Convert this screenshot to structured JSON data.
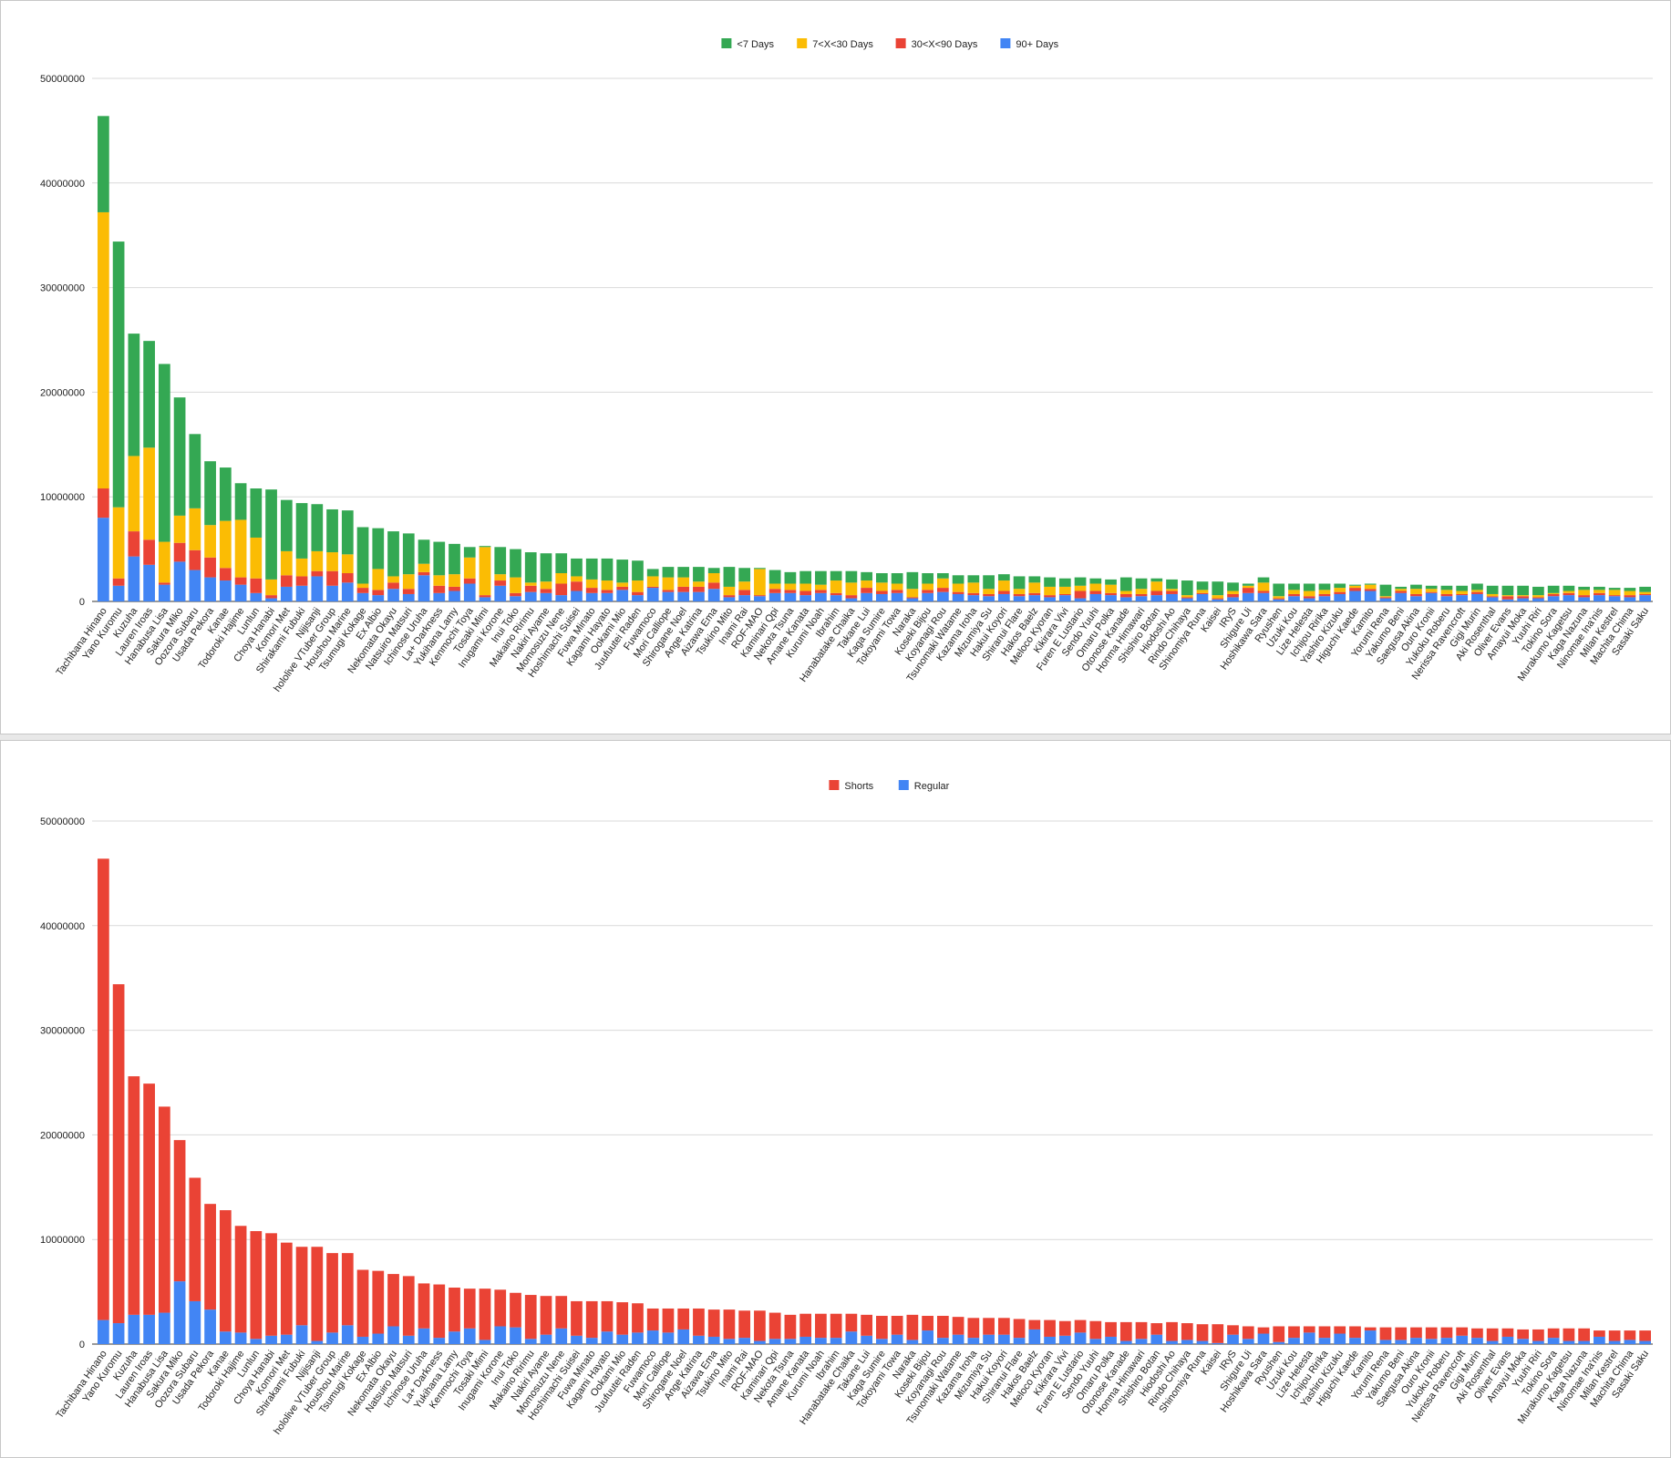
{
  "names": [
    "Tachibana Hinano",
    "Yano Kuromu",
    "Kuzuha",
    "Lauren Iroas",
    "Hanabusa Lisa",
    "Sakura Miko",
    "Oozora Subaru",
    "Usada Pekora",
    "Kanae",
    "Todoroki Hajime",
    "Lunlun",
    "Choya Hanabi",
    "Komori Met",
    "Shirakami Fubuki",
    "Nijisanji",
    "hololive VTuber Group",
    "Houshou Marine",
    "Tsumugi Kokage",
    "Ex Albio",
    "Nekomata Okayu",
    "Natsuiro Matsuri",
    "Ichinose Uruha",
    "La+ Darkness",
    "Yukihana Lamy",
    "Kenmochi Toya",
    "Tosaki Mimi",
    "Inugami Korone",
    "Inui Toko",
    "Makaino Ririmu",
    "Nakiri Ayame",
    "Momosuzu Nene",
    "Hoshimachi Suisei",
    "Fuwa Minato",
    "Kagami Hayato",
    "Ookami Mio",
    "Juufuutei Raden",
    "Fuwamoco",
    "Mori Calliope",
    "Shirogane Noel",
    "Ange Katrina",
    "Aizawa Ema",
    "Tsukino Mito",
    "Inami Rai",
    "ROF-MAO",
    "Kaminari Qpi",
    "Nekota Tsuna",
    "Amane Kanata",
    "Kurumi Noah",
    "Ibrahim",
    "Hanabatake Chaika",
    "Takane Lui",
    "Kaga Sumire",
    "Tokoyami Towa",
    "Naraka",
    "Koseki Bijou",
    "Koyanagi Rou",
    "Tsunomaki Watame",
    "Kazama Iroha",
    "Mizumiya Su",
    "Hakui Koyori",
    "Shiranui Flare",
    "Hakos Baelz",
    "Meloco Kyoran",
    "Kikirara Vivi",
    "Furen E Lustario",
    "Sendo Yuuhi",
    "Omaru Polka",
    "Otonose Kanade",
    "Honma Himawari",
    "Shishiro Botan",
    "Hiodoshi Ao",
    "Rindo Chihaya",
    "Shinomiya Runa",
    "Kaisei",
    "IRyS",
    "Shigure Ui",
    "Hoshikawa Sara",
    "Ryushen",
    "Uzuki Kou",
    "Lize Helesta",
    "Ichijou Ririka",
    "Yashiro Kizuku",
    "Higuchi Kaede",
    "Kamito",
    "Yorumi Rena",
    "Yakumo Beni",
    "Saegusa Akina",
    "Ouro Kronii",
    "Yukoku Roberu",
    "Nerissa Ravencroft",
    "Gigi Murin",
    "Aki Rosenthal",
    "Oliver Evans",
    "Amayui Moka",
    "Yuuhi Riri",
    "Tokino Sora",
    "Murakumo Kagetsu",
    "Kaga Nazuna",
    "Ninomae Ina'nis",
    "Milan Kestrel",
    "Machita Chima",
    "Sasaki Saku"
  ],
  "chart_data": [
    {
      "type": "bar",
      "stacked": true,
      "title": "",
      "xlabel": "",
      "ylabel": "",
      "ylim": [
        0,
        50000000
      ],
      "yticks": [
        "0",
        "10000000",
        "20000000",
        "30000000",
        "40000000",
        "50000000"
      ],
      "grid": true,
      "legend_position": "top",
      "series": [
        {
          "name": "90+ Days",
          "color": "#4285f4",
          "values": [
            8000000,
            1500000,
            4300000,
            3500000,
            1600000,
            3800000,
            3000000,
            2300000,
            2000000,
            1600000,
            800000,
            300000,
            1400000,
            1500000,
            2400000,
            1500000,
            1800000,
            800000,
            600000,
            1200000,
            700000,
            2500000,
            800000,
            1000000,
            1700000,
            400000,
            1500000,
            500000,
            900000,
            800000,
            600000,
            1000000,
            800000,
            800000,
            1100000,
            600000,
            1300000,
            900000,
            900000,
            900000,
            1200000,
            400000,
            600000,
            500000,
            800000,
            800000,
            600000,
            800000,
            600000,
            300000,
            800000,
            700000,
            800000,
            300000,
            800000,
            900000,
            700000,
            600000,
            500000,
            700000,
            500000,
            600000,
            400000,
            600000,
            300000,
            700000,
            600000,
            400000,
            500000,
            600000,
            700000,
            300000,
            700000,
            200000,
            400000,
            800000,
            800000,
            200000,
            500000,
            300000,
            500000,
            700000,
            1000000,
            1000000,
            300000,
            800000,
            500000,
            800000,
            500000,
            600000,
            700000,
            400000,
            200000,
            300000,
            300000,
            500000,
            600000,
            400000,
            600000,
            500000,
            400000,
            600000
          ]
        },
        {
          "name": "30<X<90 Days",
          "color": "#ea4335",
          "values": [
            2800000,
            700000,
            2400000,
            2400000,
            200000,
            1800000,
            1900000,
            1900000,
            1200000,
            700000,
            1400000,
            300000,
            1100000,
            900000,
            500000,
            1400000,
            900000,
            500000,
            500000,
            600000,
            500000,
            300000,
            700000,
            400000,
            500000,
            200000,
            500000,
            300000,
            600000,
            400000,
            1100000,
            900000,
            500000,
            300000,
            300000,
            300000,
            100000,
            200000,
            500000,
            500000,
            600000,
            200000,
            500000,
            100000,
            400000,
            300000,
            400000,
            300000,
            200000,
            300000,
            500000,
            300000,
            300000,
            100000,
            300000,
            400000,
            200000,
            200000,
            200000,
            300000,
            200000,
            200000,
            200000,
            100000,
            700000,
            300000,
            200000,
            300000,
            200000,
            400000,
            300000,
            100000,
            100000,
            100000,
            300000,
            500000,
            200000,
            100000,
            200000,
            200000,
            200000,
            200000,
            300000,
            200000,
            100000,
            200000,
            200000,
            100000,
            200000,
            100000,
            200000,
            100000,
            300000,
            200000,
            100000,
            200000,
            200000,
            200000,
            200000,
            100000,
            200000,
            100000
          ]
        },
        {
          "name": "7<X<30 Days",
          "color": "#fbbc04",
          "values": [
            26400000,
            6800000,
            7200000,
            8800000,
            3900000,
            2600000,
            4000000,
            3100000,
            4500000,
            5500000,
            3900000,
            1500000,
            2300000,
            1700000,
            1900000,
            1800000,
            1800000,
            400000,
            2000000,
            600000,
            1400000,
            800000,
            1000000,
            1200000,
            2000000,
            4600000,
            600000,
            1500000,
            300000,
            700000,
            1000000,
            500000,
            800000,
            900000,
            400000,
            1100000,
            1000000,
            1200000,
            900000,
            500000,
            900000,
            800000,
            800000,
            2500000,
            500000,
            600000,
            700000,
            500000,
            1200000,
            1200000,
            700000,
            800000,
            600000,
            800000,
            600000,
            900000,
            800000,
            1000000,
            500000,
            1000000,
            500000,
            1000000,
            800000,
            700000,
            500000,
            700000,
            800000,
            300000,
            500000,
            900000,
            200000,
            200000,
            300000,
            300000,
            300000,
            200000,
            800000,
            200000,
            400000,
            500000,
            400000,
            400000,
            200000,
            400000,
            100000,
            200000,
            500000,
            300000,
            400000,
            300000,
            200000,
            200000,
            100000,
            100000,
            200000,
            100000,
            200000,
            500000,
            300000,
            500000,
            400000,
            200000
          ]
        },
        {
          "name": "<7 Days",
          "color": "#34a853",
          "values": [
            9200000,
            25400000,
            11700000,
            10200000,
            17000000,
            11300000,
            7100000,
            6100000,
            5100000,
            3500000,
            4700000,
            8600000,
            4900000,
            5300000,
            4500000,
            4100000,
            4200000,
            5400000,
            3900000,
            4300000,
            3900000,
            2300000,
            3200000,
            2900000,
            1000000,
            100000,
            2600000,
            2700000,
            2900000,
            2700000,
            1900000,
            1700000,
            2000000,
            2100000,
            2200000,
            1900000,
            700000,
            1000000,
            1000000,
            1400000,
            500000,
            1900000,
            1300000,
            100000,
            1300000,
            1100000,
            1200000,
            1300000,
            900000,
            1100000,
            800000,
            900000,
            1000000,
            1600000,
            1000000,
            500000,
            800000,
            700000,
            1300000,
            600000,
            1200000,
            600000,
            900000,
            800000,
            800000,
            500000,
            500000,
            1300000,
            1000000,
            300000,
            900000,
            1400000,
            800000,
            1300000,
            800000,
            200000,
            500000,
            1200000,
            600000,
            700000,
            600000,
            400000,
            100000,
            100000,
            1100000,
            200000,
            400000,
            300000,
            400000,
            500000,
            600000,
            800000,
            900000,
            900000,
            800000,
            700000,
            500000,
            300000,
            300000,
            200000,
            300000,
            500000
          ]
        }
      ]
    },
    {
      "type": "bar",
      "stacked": true,
      "title": "",
      "xlabel": "",
      "ylabel": "",
      "ylim": [
        0,
        50000000
      ],
      "yticks": [
        "0",
        "10000000",
        "20000000",
        "30000000",
        "40000000",
        "50000000"
      ],
      "grid": true,
      "legend_position": "top",
      "series": [
        {
          "name": "Regular",
          "color": "#4285f4",
          "values": [
            2300000,
            2000000,
            2800000,
            2800000,
            3000000,
            6000000,
            4100000,
            3300000,
            1200000,
            1100000,
            500000,
            800000,
            900000,
            1800000,
            300000,
            1100000,
            1800000,
            700000,
            1000000,
            1700000,
            800000,
            1500000,
            600000,
            1200000,
            1500000,
            400000,
            1700000,
            1600000,
            500000,
            900000,
            1500000,
            800000,
            600000,
            1200000,
            900000,
            1100000,
            1300000,
            1100000,
            1400000,
            800000,
            700000,
            500000,
            600000,
            300000,
            500000,
            500000,
            700000,
            600000,
            600000,
            1200000,
            800000,
            500000,
            900000,
            400000,
            1300000,
            600000,
            900000,
            600000,
            900000,
            900000,
            600000,
            1400000,
            700000,
            800000,
            1100000,
            500000,
            700000,
            300000,
            500000,
            900000,
            300000,
            400000,
            300000,
            100000,
            900000,
            500000,
            1000000,
            200000,
            600000,
            1100000,
            600000,
            1000000,
            600000,
            1300000,
            400000,
            400000,
            600000,
            500000,
            600000,
            800000,
            600000,
            300000,
            700000,
            500000,
            300000,
            600000,
            300000,
            300000,
            700000,
            300000,
            400000,
            300000
          ]
        },
        {
          "name": "Shorts",
          "color": "#ea4335",
          "values": [
            44100000,
            32400000,
            22800000,
            22100000,
            19700000,
            13500000,
            11800000,
            10100000,
            11600000,
            10200000,
            10300000,
            9800000,
            8800000,
            7500000,
            9000000,
            7600000,
            6900000,
            6400000,
            6000000,
            5000000,
            5700000,
            4300000,
            5100000,
            4200000,
            3800000,
            4900000,
            3500000,
            3300000,
            4200000,
            3700000,
            3100000,
            3300000,
            3500000,
            2900000,
            3100000,
            2800000,
            2100000,
            2300000,
            2000000,
            2600000,
            2600000,
            2800000,
            2600000,
            2900000,
            2500000,
            2300000,
            2200000,
            2300000,
            2300000,
            1700000,
            2000000,
            2200000,
            1800000,
            2400000,
            1400000,
            2100000,
            1700000,
            1900000,
            1600000,
            1600000,
            1800000,
            900000,
            1600000,
            1400000,
            1200000,
            1700000,
            1400000,
            1800000,
            1600000,
            1100000,
            1800000,
            1600000,
            1600000,
            1800000,
            900000,
            1200000,
            600000,
            1500000,
            1100000,
            600000,
            1100000,
            700000,
            1100000,
            300000,
            1200000,
            1200000,
            1000000,
            1100000,
            1000000,
            800000,
            900000,
            1200000,
            800000,
            900000,
            1100000,
            900000,
            1200000,
            1200000,
            600000,
            1000000,
            900000,
            1000000
          ]
        }
      ]
    }
  ]
}
